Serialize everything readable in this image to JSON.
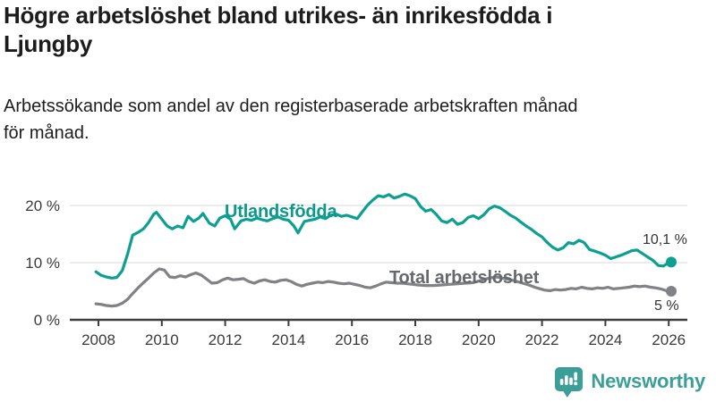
{
  "chart_data": {
    "type": "line",
    "title": "Högre arbetslöshet bland utrikes- än inrikesfödda i\nLjungby",
    "subtitle": "Arbetssökande som andel av den registerbaserade arbetskraften månad\nför månad.",
    "y_unit": "%",
    "x_range": [
      2007.9,
      2026.3
    ],
    "y_range": [
      0,
      24
    ],
    "grid": "horizontal-only",
    "legend_position": "inline-labels",
    "x_ticks": [
      "2008",
      "2010",
      "2012",
      "2014",
      "2016",
      "2018",
      "2020",
      "2022",
      "2024",
      "2026"
    ],
    "y_ticks": [
      {
        "value": 0,
        "label": "0 %"
      },
      {
        "value": 10,
        "label": "10 %"
      },
      {
        "value": 20,
        "label": "20 %"
      }
    ],
    "series": [
      {
        "name": "Utlandsfödda",
        "color": "#0da091",
        "label_color": "#0c988a",
        "end_label": "10,1 %",
        "end_value": 10.1,
        "points": [
          [
            2007.92,
            8.4
          ],
          [
            2008.08,
            7.8
          ],
          [
            2008.25,
            7.5
          ],
          [
            2008.42,
            7.3
          ],
          [
            2008.58,
            7.4
          ],
          [
            2008.75,
            8.6
          ],
          [
            2008.92,
            11.5
          ],
          [
            2009.08,
            14.8
          ],
          [
            2009.25,
            15.3
          ],
          [
            2009.42,
            15.9
          ],
          [
            2009.58,
            17.0
          ],
          [
            2009.75,
            18.5
          ],
          [
            2009.83,
            18.8
          ],
          [
            2010.0,
            17.6
          ],
          [
            2010.17,
            16.4
          ],
          [
            2010.33,
            15.9
          ],
          [
            2010.5,
            16.4
          ],
          [
            2010.67,
            16.1
          ],
          [
            2010.83,
            18.1
          ],
          [
            2011.0,
            17.2
          ],
          [
            2011.17,
            17.8
          ],
          [
            2011.3,
            18.6
          ],
          [
            2011.5,
            16.9
          ],
          [
            2011.67,
            16.4
          ],
          [
            2011.83,
            17.8
          ],
          [
            2012.0,
            18.2
          ],
          [
            2012.17,
            17.6
          ],
          [
            2012.3,
            15.9
          ],
          [
            2012.5,
            17.3
          ],
          [
            2012.67,
            17.6
          ],
          [
            2012.83,
            17.4
          ],
          [
            2013.0,
            17.8
          ],
          [
            2013.17,
            17.5
          ],
          [
            2013.33,
            17.3
          ],
          [
            2013.5,
            17.7
          ],
          [
            2013.67,
            18.0
          ],
          [
            2013.83,
            17.6
          ],
          [
            2014.0,
            17.4
          ],
          [
            2014.17,
            16.4
          ],
          [
            2014.3,
            15.2
          ],
          [
            2014.5,
            17.2
          ],
          [
            2014.67,
            17.4
          ],
          [
            2014.83,
            17.6
          ],
          [
            2015.0,
            18.0
          ],
          [
            2015.17,
            17.7
          ],
          [
            2015.33,
            18.3
          ],
          [
            2015.5,
            18.5
          ],
          [
            2015.67,
            18.1
          ],
          [
            2015.83,
            18.3
          ],
          [
            2016.0,
            18.0
          ],
          [
            2016.17,
            17.7
          ],
          [
            2016.33,
            18.9
          ],
          [
            2016.5,
            20.1
          ],
          [
            2016.67,
            21.0
          ],
          [
            2016.83,
            21.7
          ],
          [
            2017.0,
            21.5
          ],
          [
            2017.17,
            21.9
          ],
          [
            2017.33,
            21.3
          ],
          [
            2017.5,
            21.6
          ],
          [
            2017.67,
            22.0
          ],
          [
            2017.83,
            21.7
          ],
          [
            2018.0,
            21.2
          ],
          [
            2018.17,
            19.8
          ],
          [
            2018.33,
            19.0
          ],
          [
            2018.5,
            19.3
          ],
          [
            2018.67,
            18.4
          ],
          [
            2018.83,
            17.3
          ],
          [
            2019.0,
            17.0
          ],
          [
            2019.17,
            17.6
          ],
          [
            2019.33,
            16.7
          ],
          [
            2019.5,
            17.0
          ],
          [
            2019.67,
            17.9
          ],
          [
            2019.83,
            18.2
          ],
          [
            2020.0,
            17.7
          ],
          [
            2020.17,
            18.4
          ],
          [
            2020.33,
            19.4
          ],
          [
            2020.5,
            19.9
          ],
          [
            2020.67,
            19.6
          ],
          [
            2020.83,
            19.0
          ],
          [
            2021.0,
            18.3
          ],
          [
            2021.17,
            17.8
          ],
          [
            2021.33,
            17.1
          ],
          [
            2021.5,
            16.4
          ],
          [
            2021.67,
            15.8
          ],
          [
            2021.83,
            15.1
          ],
          [
            2022.0,
            14.5
          ],
          [
            2022.17,
            13.5
          ],
          [
            2022.33,
            12.7
          ],
          [
            2022.5,
            12.2
          ],
          [
            2022.67,
            12.6
          ],
          [
            2022.83,
            13.5
          ],
          [
            2023.0,
            13.3
          ],
          [
            2023.17,
            13.9
          ],
          [
            2023.33,
            13.5
          ],
          [
            2023.5,
            12.3
          ],
          [
            2023.67,
            12.0
          ],
          [
            2023.83,
            11.7
          ],
          [
            2024.0,
            11.3
          ],
          [
            2024.17,
            10.7
          ],
          [
            2024.33,
            11.0
          ],
          [
            2024.5,
            11.3
          ],
          [
            2024.67,
            11.7
          ],
          [
            2024.83,
            12.1
          ],
          [
            2025.0,
            12.2
          ],
          [
            2025.17,
            11.6
          ],
          [
            2025.33,
            11.0
          ],
          [
            2025.5,
            10.4
          ],
          [
            2025.67,
            9.5
          ],
          [
            2025.83,
            9.4
          ],
          [
            2026.0,
            10.0
          ],
          [
            2026.08,
            10.1
          ]
        ]
      },
      {
        "name": "Total arbetslöshet",
        "color": "#808285",
        "label_color": "#65686d",
        "end_label": "5 %",
        "end_value": 5.0,
        "points": [
          [
            2007.92,
            2.8
          ],
          [
            2008.08,
            2.7
          ],
          [
            2008.25,
            2.5
          ],
          [
            2008.42,
            2.4
          ],
          [
            2008.58,
            2.5
          ],
          [
            2008.75,
            2.9
          ],
          [
            2008.92,
            3.6
          ],
          [
            2009.08,
            4.6
          ],
          [
            2009.25,
            5.6
          ],
          [
            2009.42,
            6.5
          ],
          [
            2009.58,
            7.3
          ],
          [
            2009.75,
            8.2
          ],
          [
            2009.92,
            8.9
          ],
          [
            2010.08,
            8.7
          ],
          [
            2010.25,
            7.5
          ],
          [
            2010.42,
            7.4
          ],
          [
            2010.58,
            7.7
          ],
          [
            2010.75,
            7.5
          ],
          [
            2010.92,
            7.9
          ],
          [
            2011.08,
            8.2
          ],
          [
            2011.25,
            7.8
          ],
          [
            2011.42,
            7.1
          ],
          [
            2011.58,
            6.4
          ],
          [
            2011.75,
            6.5
          ],
          [
            2011.92,
            7.0
          ],
          [
            2012.08,
            7.3
          ],
          [
            2012.25,
            7.0
          ],
          [
            2012.42,
            7.1
          ],
          [
            2012.58,
            7.2
          ],
          [
            2012.75,
            6.7
          ],
          [
            2012.92,
            6.4
          ],
          [
            2013.08,
            6.8
          ],
          [
            2013.25,
            7.0
          ],
          [
            2013.42,
            6.7
          ],
          [
            2013.58,
            6.6
          ],
          [
            2013.75,
            6.9
          ],
          [
            2013.92,
            7.0
          ],
          [
            2014.08,
            6.7
          ],
          [
            2014.25,
            6.2
          ],
          [
            2014.42,
            5.9
          ],
          [
            2014.58,
            6.2
          ],
          [
            2014.75,
            6.4
          ],
          [
            2014.92,
            6.6
          ],
          [
            2015.08,
            6.5
          ],
          [
            2015.25,
            6.7
          ],
          [
            2015.42,
            6.6
          ],
          [
            2015.58,
            6.4
          ],
          [
            2015.75,
            6.3
          ],
          [
            2015.92,
            6.4
          ],
          [
            2016.08,
            6.2
          ],
          [
            2016.25,
            6.0
          ],
          [
            2016.42,
            5.7
          ],
          [
            2016.58,
            5.6
          ],
          [
            2016.75,
            5.9
          ],
          [
            2016.92,
            6.3
          ],
          [
            2017.08,
            6.6
          ],
          [
            2017.25,
            6.5
          ],
          [
            2017.42,
            6.4
          ],
          [
            2017.58,
            6.4
          ],
          [
            2017.75,
            6.3
          ],
          [
            2017.92,
            6.2
          ],
          [
            2018.08,
            6.1
          ],
          [
            2018.33,
            6.0
          ],
          [
            2018.58,
            6.0
          ],
          [
            2018.83,
            6.1
          ],
          [
            2019.08,
            6.2
          ],
          [
            2019.33,
            6.3
          ],
          [
            2019.58,
            6.4
          ],
          [
            2019.83,
            6.5
          ],
          [
            2020.08,
            6.9
          ],
          [
            2020.33,
            7.3
          ],
          [
            2020.58,
            7.5
          ],
          [
            2020.83,
            7.2
          ],
          [
            2021.08,
            6.9
          ],
          [
            2021.33,
            6.5
          ],
          [
            2021.58,
            6.1
          ],
          [
            2021.83,
            5.6
          ],
          [
            2022.08,
            5.2
          ],
          [
            2022.25,
            5.1
          ],
          [
            2022.42,
            5.3
          ],
          [
            2022.58,
            5.2
          ],
          [
            2022.75,
            5.3
          ],
          [
            2022.92,
            5.5
          ],
          [
            2023.08,
            5.4
          ],
          [
            2023.25,
            5.7
          ],
          [
            2023.42,
            5.5
          ],
          [
            2023.58,
            5.4
          ],
          [
            2023.75,
            5.6
          ],
          [
            2023.92,
            5.5
          ],
          [
            2024.08,
            5.7
          ],
          [
            2024.25,
            5.4
          ],
          [
            2024.42,
            5.5
          ],
          [
            2024.58,
            5.6
          ],
          [
            2024.75,
            5.7
          ],
          [
            2024.92,
            5.9
          ],
          [
            2025.08,
            5.8
          ],
          [
            2025.25,
            5.9
          ],
          [
            2025.42,
            5.7
          ],
          [
            2025.58,
            5.6
          ],
          [
            2025.75,
            5.4
          ],
          [
            2025.92,
            5.1
          ],
          [
            2026.08,
            5.0
          ]
        ]
      }
    ]
  },
  "footer": {
    "brand": "Newsworthy",
    "brand_color": "#3b9e97",
    "logo_icon": "bar-chart-speech-bubble"
  }
}
